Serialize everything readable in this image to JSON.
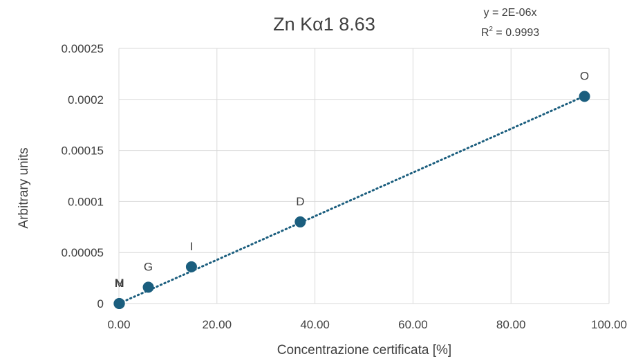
{
  "chart_data": {
    "type": "scatter",
    "title": "Zn Kα1 8.63",
    "xlabel": "Concentrazione certificata [%]",
    "ylabel": "Arbitrary units",
    "xlim": [
      0,
      100
    ],
    "ylim": [
      0,
      0.00025
    ],
    "x_ticks": [
      "0.00",
      "20.00",
      "40.00",
      "60.00",
      "80.00",
      "100.00"
    ],
    "y_ticks": [
      "0",
      "0.00005",
      "0.0001",
      "0.00015",
      "0.0002",
      "0.00025"
    ],
    "grid": true,
    "marker_color": "#1b5e7e",
    "trendline_color": "#1b5e7e",
    "series": [
      {
        "points": [
          {
            "label": "N",
            "x": 0.05,
            "y": 0.0
          },
          {
            "label": "M",
            "x": 0.1,
            "y": 0.0
          },
          {
            "label": "G",
            "x": 6.0,
            "y": 1.6e-05
          },
          {
            "label": "I",
            "x": 14.8,
            "y": 3.6e-05
          },
          {
            "label": "D",
            "x": 37.0,
            "y": 8e-05
          },
          {
            "label": "O",
            "x": 95.0,
            "y": 0.000203
          }
        ]
      }
    ],
    "trendline": {
      "type": "linear",
      "slope": 2.14e-06,
      "equation": "y = 2E-06x",
      "r_squared_prefix": "R",
      "r_squared_sup": "2",
      "r_squared_value": " = 0.9993"
    }
  }
}
